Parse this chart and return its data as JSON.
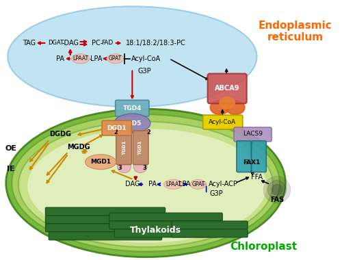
{
  "fig_width": 5.0,
  "fig_height": 3.8,
  "dpi": 100,
  "bg_color": "#ffffff",
  "er_color": "#b8dff0",
  "er_label": "Endoplasmic\nreticulum",
  "er_label_color": "#ff6600",
  "chloroplast_outer_color": "#7ab840",
  "chloroplast_inner_color": "#c8e08a",
  "chloroplast_innermost_color": "#e0eebc",
  "chloroplast_label": "Chloroplast",
  "chloroplast_label_color": "#00aa00",
  "thylakoid_color": "#2d6e2d",
  "thylakoid_label": "Thylakoids",
  "oe_label": "OE",
  "ie_label": "IE",
  "er_pathway_color": "#cc0000",
  "plastid_pathway_color": "#0000cc",
  "common_pathway_color": "#cc8800",
  "black_arrow_color": "#000000",
  "tgd4_color": "#70b0c0",
  "tgd5_color": "#9080b8",
  "tgd1_color": "#c08868",
  "tgd_pink_color": "#e8b0b8",
  "dgd1_color": "#e09050",
  "mgd1_color": "#e8a878",
  "abca9_color": "#cc5555",
  "abca9_orange_color": "#e06020",
  "acylcoa_box_color": "#e8d000",
  "lacs9_color": "#b090c0",
  "fax1_color": "#30a0b0",
  "lpaat_circle_color": "#f0c0b0",
  "gpat_circle_color": "#f0c0b0"
}
